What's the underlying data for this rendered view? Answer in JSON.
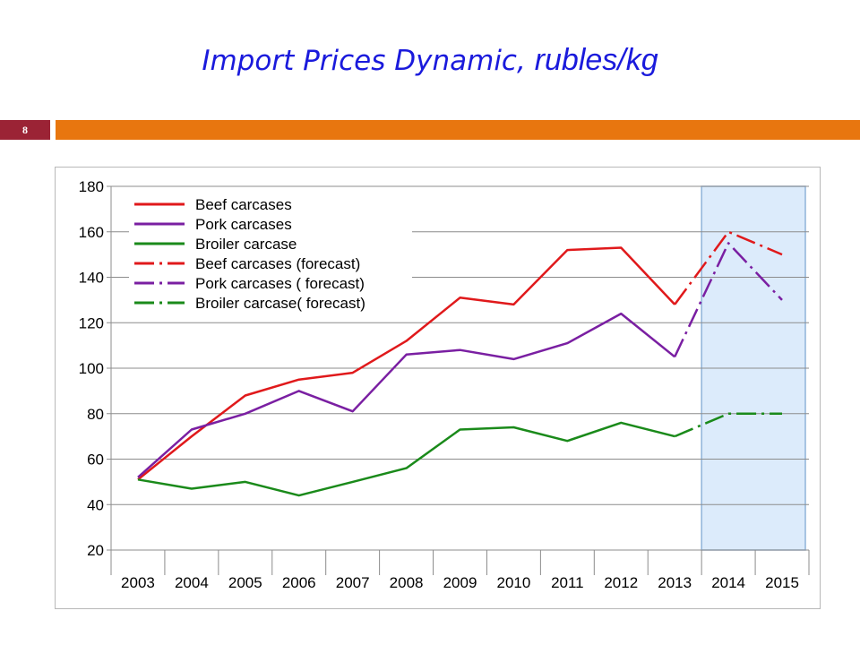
{
  "slide": {
    "title_main": "Import Prices Dynamic, ",
    "title_unit": "rubles/kg",
    "page_number": "8"
  },
  "colors": {
    "title": "#1a1adc",
    "badge": "#9b2335",
    "accent_bar": "#e8760f",
    "forecast_band": "#dcebfb"
  },
  "chart_data": {
    "type": "line",
    "title": "",
    "xlabel": "",
    "ylabel": "",
    "categories": [
      "2003",
      "2004",
      "2005",
      "2006",
      "2007",
      "2008",
      "2009",
      "2010",
      "2011",
      "2012",
      "2013",
      "2014",
      "2015"
    ],
    "ylim": [
      20,
      180
    ],
    "yticks": [
      20,
      40,
      60,
      80,
      100,
      120,
      140,
      160,
      180
    ],
    "grid": true,
    "legend_position": "top-left",
    "forecast_highlight": [
      "2014",
      "2015"
    ],
    "series": [
      {
        "name": "Beef carcases",
        "color": "#e0191b",
        "style": "solid",
        "values": [
          51,
          70,
          88,
          95,
          98,
          112,
          131,
          128,
          152,
          153,
          128,
          null,
          null
        ]
      },
      {
        "name": "Pork carcases",
        "color": "#7a1fa2",
        "style": "solid",
        "values": [
          52,
          73,
          80,
          90,
          81,
          106,
          108,
          104,
          111,
          124,
          105,
          null,
          null
        ]
      },
      {
        "name": "Broiler carcase",
        "color": "#1a8a1a",
        "style": "solid",
        "values": [
          51,
          47,
          50,
          44,
          50,
          56,
          73,
          74,
          68,
          76,
          70,
          null,
          null
        ]
      },
      {
        "name": "Beef carcases (forecast)",
        "color": "#e0191b",
        "style": "dashdot",
        "values": [
          null,
          null,
          null,
          null,
          null,
          null,
          null,
          null,
          null,
          null,
          128,
          160,
          150
        ]
      },
      {
        "name": "Pork carcases ( forecast)",
        "color": "#7a1fa2",
        "style": "dashdot",
        "values": [
          null,
          null,
          null,
          null,
          null,
          null,
          null,
          null,
          null,
          null,
          105,
          155,
          130
        ]
      },
      {
        "name": "Broiler carcase( forecast)",
        "color": "#1a8a1a",
        "style": "dashdot",
        "values": [
          null,
          null,
          null,
          null,
          null,
          null,
          null,
          null,
          null,
          null,
          70,
          80,
          80
        ]
      }
    ]
  }
}
